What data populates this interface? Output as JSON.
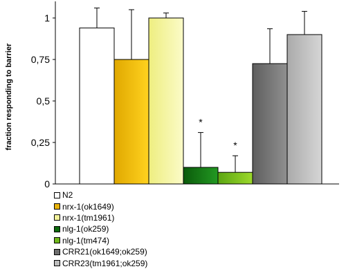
{
  "chart_data": {
    "type": "bar",
    "ylabel": "fraction responding to barrier",
    "ylim": [
      0,
      1.1
    ],
    "y_ticks": [
      0,
      0.25,
      0.5,
      0.75,
      1
    ],
    "y_tick_labels": [
      "0",
      "0,25",
      "0,5",
      "0,75",
      "1"
    ],
    "grid": false,
    "legend_position": "bottom-left",
    "categories": [
      "N2",
      "nrx-1(ok1649)",
      "nrx-1(tm1961)",
      "nlg-1(ok259)",
      "nlg-1(tm474)",
      "CRR21(ok1649;ok259)",
      "CRR23(tm1961;ok259)"
    ],
    "values": [
      0.94,
      0.75,
      1.0,
      0.1,
      0.07,
      0.725,
      0.9
    ],
    "errors": [
      0.12,
      0.3,
      0.03,
      0.21,
      0.1,
      0.21,
      0.14
    ],
    "significance": [
      "",
      "",
      "",
      "*",
      "*",
      "",
      ""
    ],
    "colors": [
      {
        "light": "#ffffff",
        "dark": "#ffffff"
      },
      {
        "light": "#ffd21f",
        "dark": "#e0a800"
      },
      {
        "light": "#fbfbc8",
        "dark": "#eeee80"
      },
      {
        "light": "#229922",
        "dark": "#0b5a0b"
      },
      {
        "light": "#9cd82c",
        "dark": "#5ba612"
      },
      {
        "light": "#909090",
        "dark": "#5e5e5e"
      },
      {
        "light": "#d6d6d6",
        "dark": "#aaaaaa"
      }
    ],
    "legend_swatch_colors": [
      "#ffffff",
      "#e8b30c",
      "#f2f29a",
      "#0e6b0e",
      "#70b81c",
      "#6d6d6d",
      "#bdbdbd"
    ]
  }
}
